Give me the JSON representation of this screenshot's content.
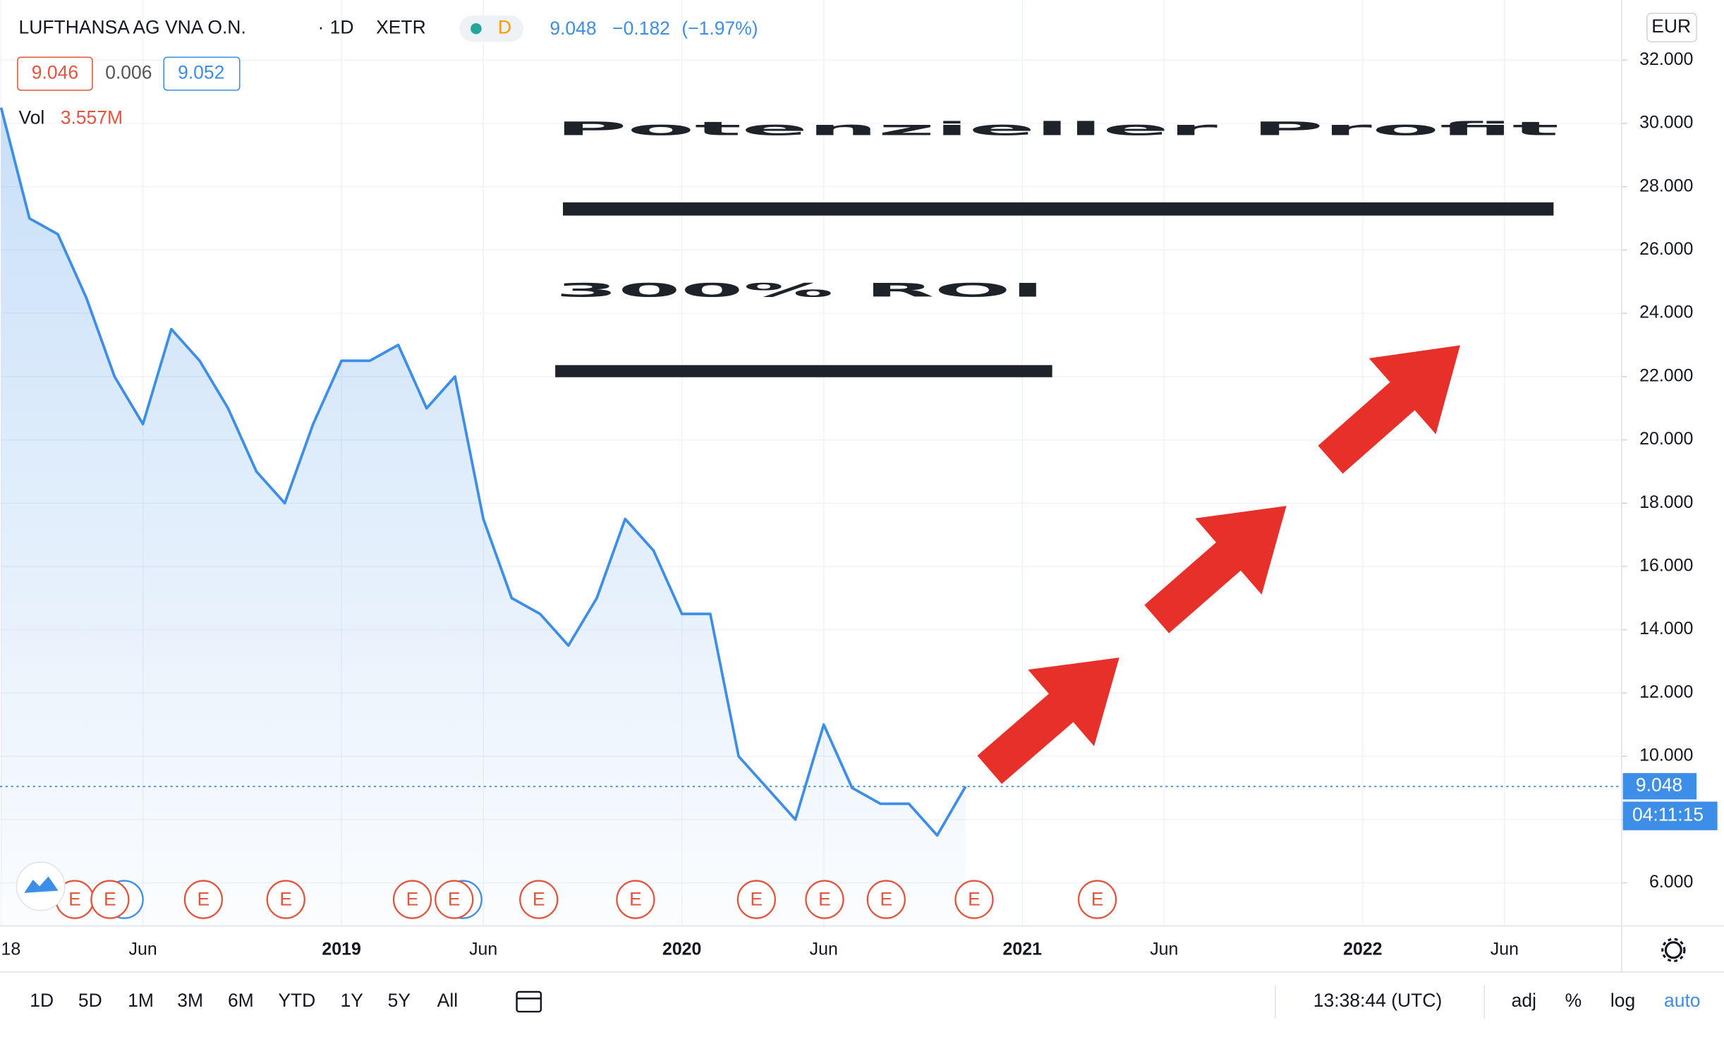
{
  "header": {
    "symbol": "LUFTHANSA AG VNA O.N.",
    "separator": "·",
    "interval": "1D",
    "exchange": "XETR",
    "badge": "D",
    "last": "9.048",
    "change": "−0.182",
    "change_pct": "(−1.97%)",
    "bid": "9.046",
    "spread": "0.006",
    "ask": "9.052",
    "vol_label": "Vol",
    "vol_value": "3.557M",
    "currency": "EUR"
  },
  "overlay": {
    "headline": "Potenzieller Profit",
    "subline": "300% ROI"
  },
  "price_tag": "9.048",
  "countdown": "04:11:15",
  "events": [
    "E",
    "E",
    "E",
    "E",
    "E",
    "E",
    "E",
    "E",
    "E",
    "E",
    "E",
    "E",
    "E"
  ],
  "toolbar": {
    "ranges": [
      "1D",
      "5D",
      "1M",
      "3M",
      "6M",
      "YTD",
      "1Y",
      "5Y",
      "All"
    ],
    "clock": "13:38:44 (UTC)",
    "options": [
      "adj",
      "%",
      "log",
      "auto"
    ]
  },
  "chart_data": {
    "type": "line",
    "categories": [
      "18",
      null,
      null,
      null,
      null,
      "Jun",
      null,
      null,
      null,
      null,
      null,
      null,
      "2019",
      null,
      null,
      null,
      null,
      "Jun",
      null,
      null,
      null,
      null,
      null,
      null,
      "2020",
      null,
      null,
      null,
      null,
      "Jun",
      null,
      null,
      null,
      null,
      null,
      null,
      "2021",
      null,
      null,
      null,
      null,
      "Jun",
      null,
      null,
      null,
      null,
      null,
      null,
      "2022",
      null,
      null,
      null,
      null,
      "Jun",
      null,
      null,
      null
    ],
    "series": [
      {
        "name": "LUFTHANSA AG VNA O.N.",
        "color": "#3d8ee6",
        "values": [
          30.5,
          27,
          26.5,
          24.5,
          22,
          20.5,
          23.5,
          22.5,
          21,
          19,
          18,
          20.5,
          22.5,
          22.5,
          23,
          21,
          22,
          17.5,
          15,
          14.5,
          13.5,
          15,
          17.5,
          16.5,
          14.5,
          14.5,
          10,
          9,
          8,
          11,
          9,
          8.5,
          8.5,
          7.5,
          9.048,
          null,
          null,
          null,
          null,
          null,
          null,
          null,
          null,
          null,
          null,
          null,
          null,
          null,
          null,
          null,
          null,
          null,
          null,
          null,
          null,
          null,
          null
        ]
      }
    ],
    "ylim": [
      4.64,
      33.9
    ],
    "yticks": [
      {
        "value": 6,
        "label": "6.000"
      },
      {
        "value": 8,
        "label": "8.000"
      },
      {
        "value": 10,
        "label": "10.000"
      },
      {
        "value": 12,
        "label": "12.000"
      },
      {
        "value": 14,
        "label": "14.000"
      },
      {
        "value": 16,
        "label": "16.000"
      },
      {
        "value": 18,
        "label": "18.000"
      },
      {
        "value": 20,
        "label": "20.000"
      },
      {
        "value": 22,
        "label": "22.000"
      },
      {
        "value": 24,
        "label": "24.000"
      },
      {
        "value": 26,
        "label": "26.000"
      },
      {
        "value": 28,
        "label": "28.000"
      },
      {
        "value": 30,
        "label": "30.000"
      },
      {
        "value": 32,
        "label": "32.000"
      }
    ],
    "grid": true
  }
}
